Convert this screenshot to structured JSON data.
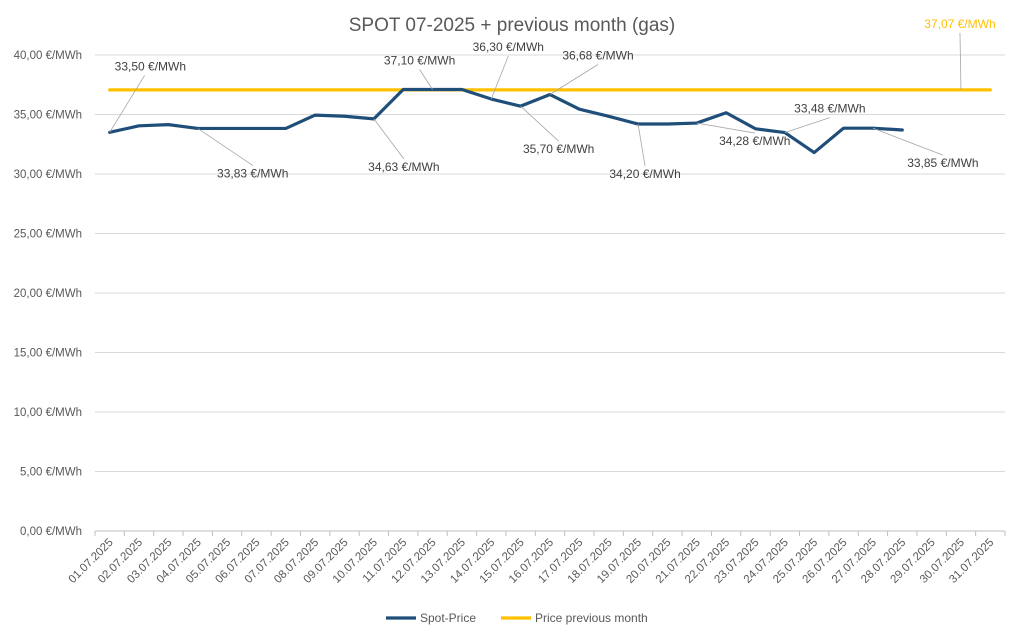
{
  "chart_data": {
    "type": "line",
    "title": "SPOT 07-2025 + previous month (gas)",
    "xlabel": "",
    "ylabel": "",
    "ylim": [
      0,
      40
    ],
    "y_ticks": [
      0,
      5,
      10,
      15,
      20,
      25,
      30,
      35,
      40
    ],
    "y_tick_labels": [
      "0,00 €/MWh",
      "5,00 €/MWh",
      "10,00 €/MWh",
      "15,00 €/MWh",
      "20,00 €/MWh",
      "25,00 €/MWh",
      "30,00 €/MWh",
      "35,00 €/MWh",
      "40,00 €/MWh"
    ],
    "grid": true,
    "legend_position": "bottom",
    "categories": [
      "01.07.2025",
      "02.07.2025",
      "03.07.2025",
      "04.07.2025",
      "05.07.2025",
      "06.07.2025",
      "07.07.2025",
      "08.07.2025",
      "09.07.2025",
      "10.07.2025",
      "11.07.2025",
      "12.07.2025",
      "13.07.2025",
      "14.07.2025",
      "15.07.2025",
      "16.07.2025",
      "17.07.2025",
      "18.07.2025",
      "19.07.2025",
      "20.07.2025",
      "21.07.2025",
      "22.07.2025",
      "23.07.2025",
      "24.07.2025",
      "25.07.2025",
      "26.07.2025",
      "27.07.2025",
      "28.07.2025",
      "29.07.2025",
      "30.07.2025",
      "31.07.2025"
    ],
    "series": [
      {
        "name": "Spot-Price",
        "color": "#1f4e79",
        "values": [
          33.5,
          34.05,
          34.15,
          33.83,
          33.83,
          33.83,
          33.83,
          34.95,
          34.85,
          34.63,
          37.1,
          37.1,
          37.1,
          36.3,
          35.7,
          36.68,
          35.45,
          34.85,
          34.2,
          34.2,
          34.28,
          35.15,
          33.8,
          33.48,
          31.8,
          33.85,
          33.85,
          33.7,
          null,
          null,
          null
        ]
      },
      {
        "name": "Price previous month",
        "color": "#ffc000",
        "values": [
          37.07,
          37.07,
          37.07,
          37.07,
          37.07,
          37.07,
          37.07,
          37.07,
          37.07,
          37.07,
          37.07,
          37.07,
          37.07,
          37.07,
          37.07,
          37.07,
          37.07,
          37.07,
          37.07,
          37.07,
          37.07,
          37.07,
          37.07,
          37.07,
          37.07,
          37.07,
          37.07,
          37.07,
          37.07,
          37.07,
          37.07
        ]
      }
    ],
    "annotations": [
      {
        "series": 0,
        "index": 0,
        "text": "33,50 €/MWh"
      },
      {
        "series": 0,
        "index": 3,
        "text": "33,83 €/MWh"
      },
      {
        "series": 0,
        "index": 9,
        "text": "34,63 €/MWh"
      },
      {
        "series": 0,
        "index": 11,
        "text": "37,10 €/MWh"
      },
      {
        "series": 0,
        "index": 13,
        "text": "36,30 €/MWh"
      },
      {
        "series": 0,
        "index": 14,
        "text": "35,70 €/MWh"
      },
      {
        "series": 0,
        "index": 15,
        "text": "36,68 €/MWh"
      },
      {
        "series": 0,
        "index": 18,
        "text": "34,20 €/MWh"
      },
      {
        "series": 0,
        "index": 20,
        "text": "34,28 €/MWh"
      },
      {
        "series": 0,
        "index": 23,
        "text": "33,48 €/MWh"
      },
      {
        "series": 0,
        "index": 26,
        "text": "33,85 €/MWh"
      },
      {
        "series": 1,
        "index": 29,
        "text": "37,07 €/MWh"
      }
    ]
  }
}
